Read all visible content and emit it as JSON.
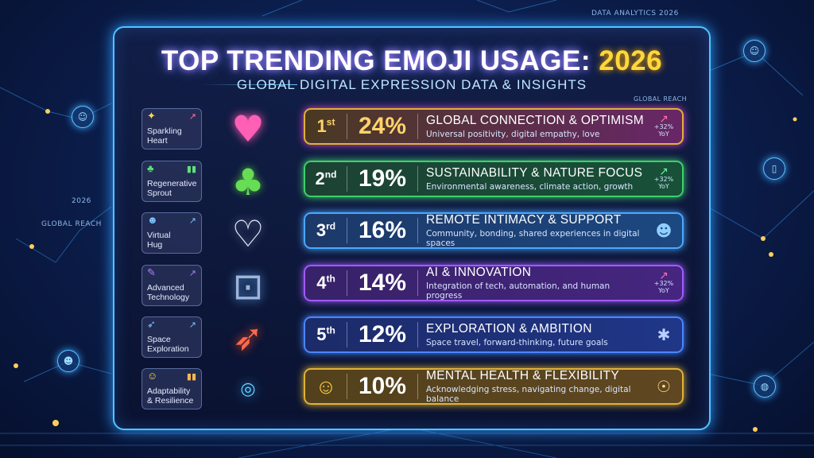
{
  "header": {
    "corner_top_right": "DATA ANALYTICS 2026",
    "left_year": "2026",
    "left_reach": "GLOBAL REACH",
    "title_main": "TOP TRENDING EMOJI USAGE: ",
    "title_year": "2026",
    "subtitle": "GLOBAL DIGITAL EXPRESSION DATA & INSIGHTS",
    "global_reach": "GLOBAL REACH"
  },
  "labels": [
    {
      "text": "Sparkling\nHeart",
      "icon": "sparkle-icon"
    },
    {
      "text": "Regenerative\nSprout",
      "icon": "sprout-icon"
    },
    {
      "text": "Virtual\nHug",
      "icon": "people-icon"
    },
    {
      "text": "Advanced\nTechnology",
      "icon": "pen-icon"
    },
    {
      "text": "Space\nExploration",
      "icon": "rocket-icon"
    },
    {
      "text": "Adaptability\n& Resilience",
      "icon": "face-icon"
    }
  ],
  "rows": [
    {
      "rank": "1",
      "suffix": "st",
      "pct": "24%",
      "title": "GLOBAL CONNECTION & OPTIMISM",
      "desc": "Universal positivity, digital empathy, love",
      "trend": "+32%",
      "trend_unit": "YoY",
      "color": "#d94ad0",
      "rank_color": "#ffd36a",
      "pct_color": "#ffd36a"
    },
    {
      "rank": "2",
      "suffix": "nd",
      "pct": "19%",
      "title": "SUSTAINABILITY & NATURE FOCUS",
      "desc": "Environmental awareness, climate action, growth",
      "trend": "+32%",
      "trend_unit": "YoY",
      "color": "#3fd06a",
      "rank_color": "#ffffff",
      "pct_color": "#ffffff"
    },
    {
      "rank": "3",
      "suffix": "rd",
      "pct": "16%",
      "title": "REMOTE INTIMACY & SUPPORT",
      "desc": "Community, bonding, shared experiences in digital spaces",
      "trend": "",
      "trend_unit": "",
      "color": "#4aa8ff",
      "rank_color": "#ffffff",
      "pct_color": "#ffffff"
    },
    {
      "rank": "4",
      "suffix": "th",
      "pct": "14%",
      "title": "AI & INNOVATION",
      "desc": "Integration of tech, automation, and human progress",
      "trend": "+32%",
      "trend_unit": "YoY",
      "color": "#a05bff",
      "rank_color": "#ffffff",
      "pct_color": "#ffffff"
    },
    {
      "rank": "5",
      "suffix": "th",
      "pct": "12%",
      "title": "EXPLORATION & AMBITION",
      "desc": "Space travel, forward-thinking, future goals",
      "trend": "",
      "trend_unit": "",
      "color": "#4a86ff",
      "rank_color": "#ffffff",
      "pct_color": "#ffffff"
    },
    {
      "rank": "",
      "suffix": "",
      "pct": "10%",
      "title": "MENTAL HEALTH & FLEXIBILITY",
      "desc": "Acknowledging stress, navigating change, digital balance",
      "trend": "",
      "trend_unit": "",
      "color": "#e0b238",
      "rank_color": "#ffffff",
      "pct_color": "#ffffff"
    }
  ]
}
